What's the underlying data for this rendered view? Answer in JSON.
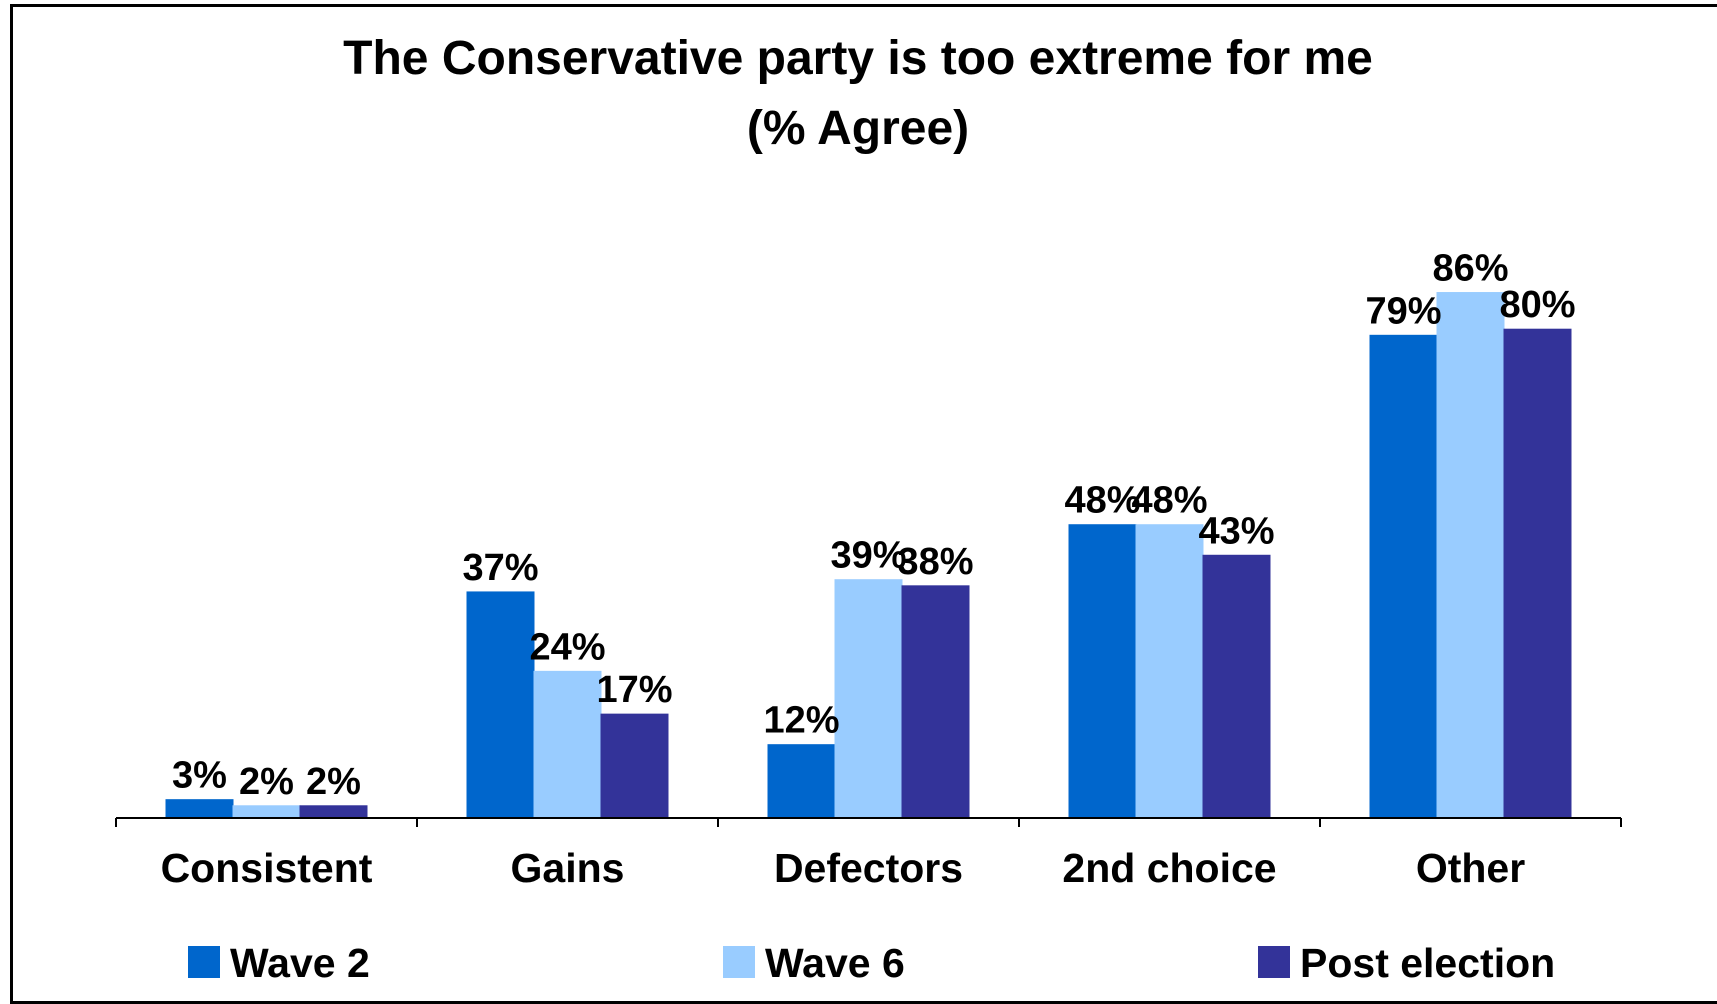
{
  "chart_data": {
    "type": "bar",
    "title": "The Conservative party is too extreme for me",
    "subtitle": "(% Agree)",
    "categories": [
      "Consistent",
      "Gains",
      "Defectors",
      "2nd choice",
      "Other"
    ],
    "series": [
      {
        "name": "Wave 2",
        "color": "#0066CC",
        "values": [
          3,
          37,
          12,
          48,
          79
        ],
        "labels": [
          "3%",
          "37%",
          "12%",
          "48%",
          "79%"
        ]
      },
      {
        "name": "Wave 6",
        "color": "#99CCFF",
        "values": [
          2,
          24,
          39,
          48,
          86
        ],
        "labels": [
          "2%",
          "24%",
          "39%",
          "48%",
          "86%"
        ]
      },
      {
        "name": "Post election",
        "color": "#333399",
        "values": [
          2,
          17,
          38,
          43,
          80
        ],
        "labels": [
          "2%",
          "17%",
          "38%",
          "43%",
          "80%"
        ]
      }
    ],
    "ylim": [
      0,
      100
    ],
    "grid": false,
    "legend": "bottom"
  }
}
